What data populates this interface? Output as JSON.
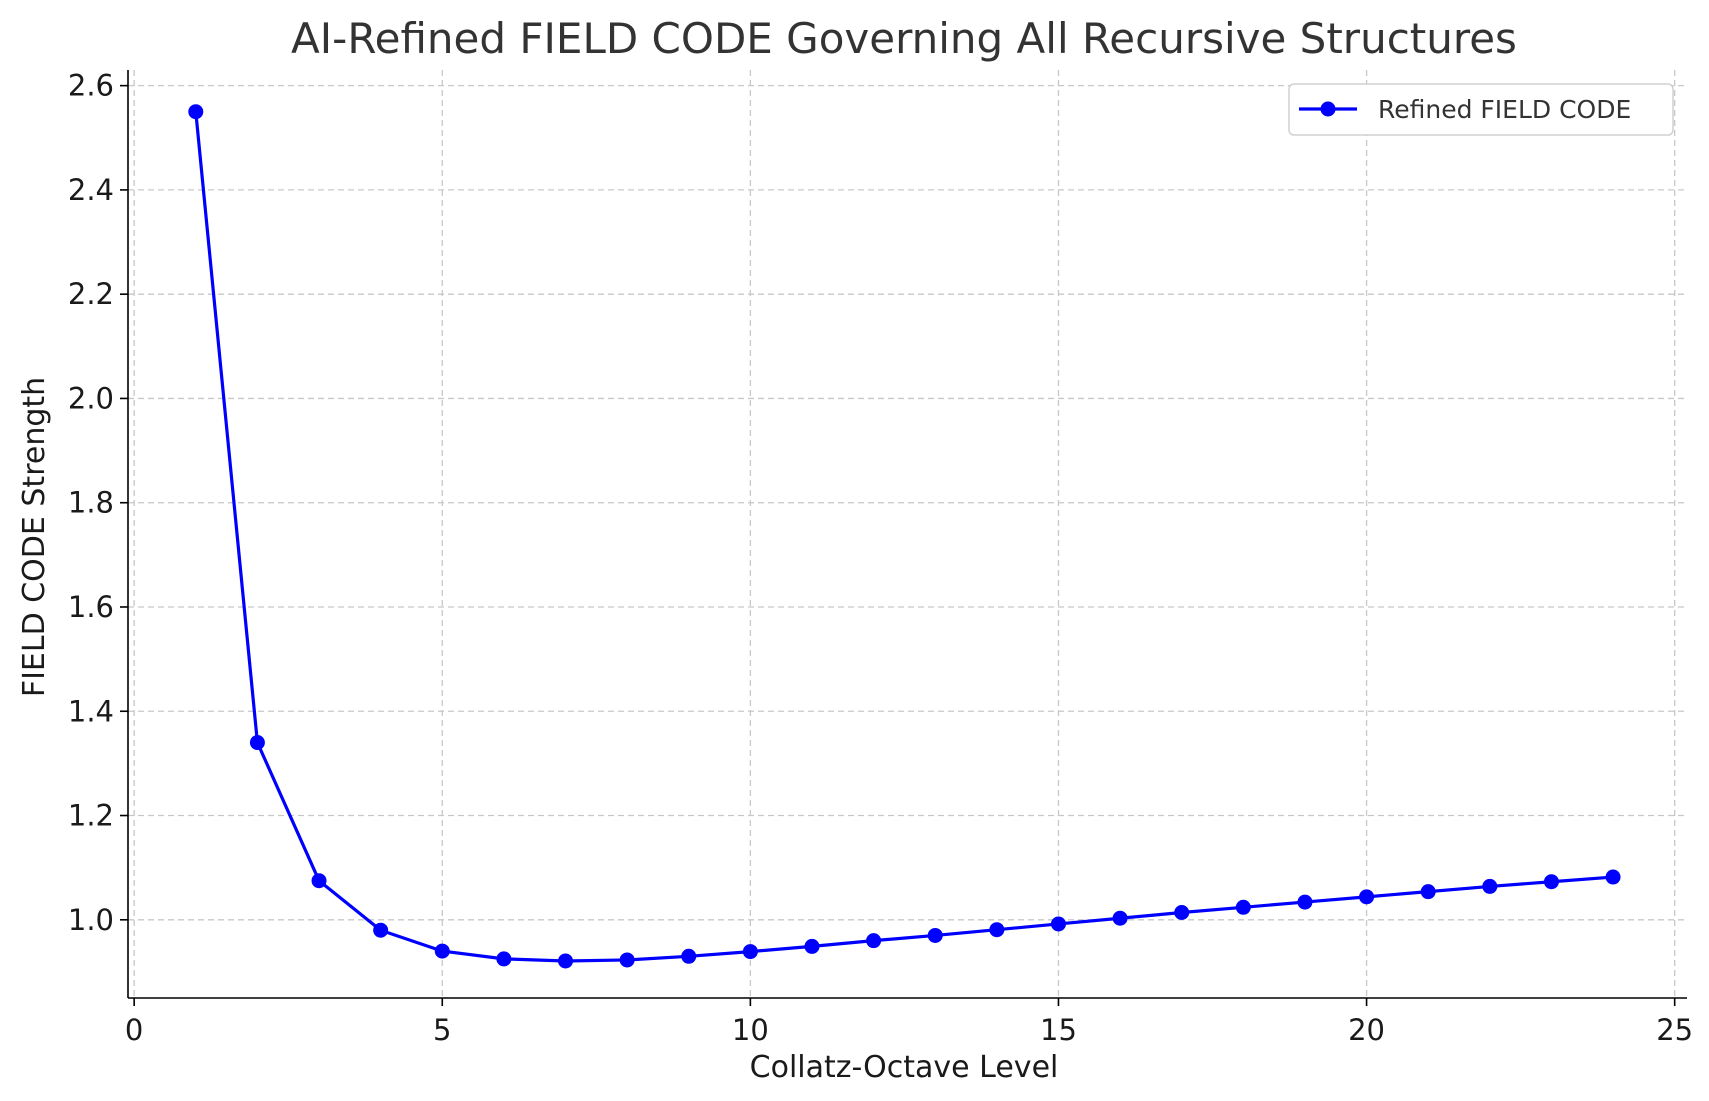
{
  "chart_data": {
    "type": "line",
    "title": "AI-Refined FIELD CODE Governing All Recursive Structures",
    "xlabel": "Collatz-Octave Level",
    "ylabel": "FIELD CODE Strength",
    "xlim": [
      -0.1,
      25.2
    ],
    "ylim": [
      0.85,
      2.63
    ],
    "xticks": [
      0,
      5,
      10,
      15,
      20,
      25
    ],
    "xtick_labels": [
      "0",
      "5",
      "10",
      "15",
      "20",
      "25"
    ],
    "yticks": [
      1.0,
      1.2,
      1.4,
      1.6,
      1.8,
      2.0,
      2.2,
      2.4,
      2.6
    ],
    "ytick_labels": [
      "1.0",
      "1.2",
      "1.4",
      "1.6",
      "1.8",
      "2.0",
      "2.2",
      "2.4",
      "2.6"
    ],
    "grid": true,
    "legend_position": "top-right",
    "series": [
      {
        "name": "Refined FIELD CODE",
        "color": "#0000ff",
        "marker": "circle",
        "x": [
          1,
          2,
          3,
          4,
          5,
          6,
          7,
          8,
          9,
          10,
          11,
          12,
          13,
          14,
          15,
          16,
          17,
          18,
          19,
          20,
          21,
          22,
          23,
          24
        ],
        "y": [
          2.55,
          1.34,
          1.075,
          0.98,
          0.94,
          0.925,
          0.921,
          0.923,
          0.93,
          0.939,
          0.949,
          0.96,
          0.97,
          0.981,
          0.992,
          1.003,
          1.014,
          1.024,
          1.034,
          1.044,
          1.054,
          1.064,
          1.073,
          1.082
        ]
      }
    ]
  }
}
